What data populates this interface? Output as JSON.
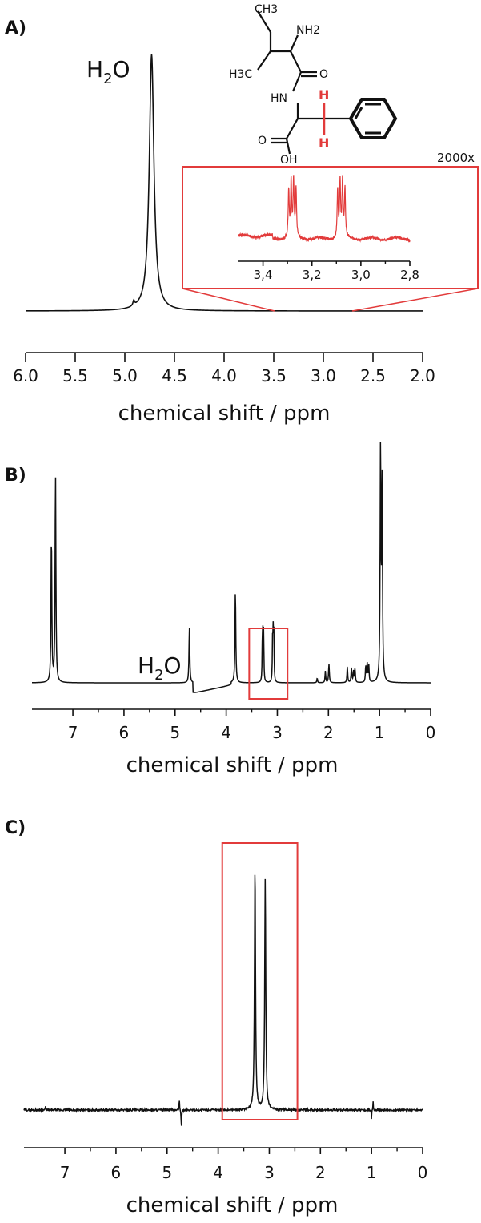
{
  "figure": {
    "panels": [
      {
        "id": "A",
        "label": "A)",
        "annotation": "H2O",
        "annotation_sub": "2",
        "xlabel": "chemical shift / ppm"
      },
      {
        "id": "B",
        "label": "B)",
        "annotation": "H2O",
        "annotation_sub": "2",
        "xlabel": "chemical shift / ppm"
      },
      {
        "id": "C",
        "label": "C)",
        "xlabel": "chemical shift / ppm"
      }
    ],
    "inset": {
      "magnification": "2000x"
    },
    "molecule": {
      "labels": {
        "ch3_top": "CH3",
        "nh2": "NH2",
        "h3c": "H3C",
        "o_amide": "O",
        "hn": "HN",
        "h_top": "H",
        "h_bottom": "H",
        "o_acid": "O",
        "oh": "OH"
      }
    },
    "colors": {
      "trace": "#111111",
      "highlight": "#e23b3b",
      "inset_trace": "#e23b3b"
    }
  },
  "chart_data": [
    {
      "type": "line",
      "panel": "A",
      "xlabel": "chemical shift / ppm",
      "ylabel": "",
      "xlim": [
        6.0,
        2.0
      ],
      "x_reversed": true,
      "xticks": [
        "6.0",
        "5.5",
        "5.0",
        "4.5",
        "4.0",
        "3.5",
        "3.0",
        "2.5",
        "2.0"
      ],
      "xtick_values": [
        6.0,
        5.5,
        5.0,
        4.5,
        4.0,
        3.5,
        3.0,
        2.5,
        2.0
      ],
      "peaks": [
        {
          "label": "H2O",
          "ppm": 4.73,
          "relative_height": 1.0
        }
      ],
      "inset": {
        "label": "2000x",
        "xlim": [
          3.5,
          2.8
        ],
        "xticks": [
          "3,4",
          "3,2",
          "3,0",
          "2,8"
        ],
        "xtick_values": [
          3.4,
          3.2,
          3.0,
          2.8
        ],
        "multiplets": [
          {
            "center_ppm": 3.28,
            "lines": 4
          },
          {
            "center_ppm": 3.08,
            "lines": 4
          }
        ],
        "zoom_region_ppm": [
          3.55,
          2.75
        ]
      }
    },
    {
      "type": "line",
      "panel": "B",
      "xlabel": "chemical shift / ppm",
      "ylabel": "",
      "xlim": [
        7.8,
        0
      ],
      "x_reversed": true,
      "xticks": [
        "7",
        "6",
        "5",
        "4",
        "3",
        "2",
        "1",
        "0"
      ],
      "xtick_values": [
        7,
        6,
        5,
        4,
        3,
        2,
        1,
        0
      ],
      "peaks": [
        {
          "ppm": 7.42,
          "relative_height": 0.64
        },
        {
          "ppm": 7.34,
          "relative_height": 0.9
        },
        {
          "label": "H2O",
          "ppm": 4.72,
          "relative_height": 0.24
        },
        {
          "ppm": 3.82,
          "relative_height": 0.4
        },
        {
          "ppm": 3.28,
          "relative_height": 0.24
        },
        {
          "ppm": 3.08,
          "relative_height": 0.24
        },
        {
          "ppm": 1.99,
          "relative_height": 0.08
        },
        {
          "ppm": 1.55,
          "relative_height": 0.06
        },
        {
          "ppm": 1.24,
          "relative_height": 0.08
        },
        {
          "ppm": 0.98,
          "relative_height": 1.0
        },
        {
          "ppm": 0.95,
          "relative_height": 0.85
        }
      ],
      "highlight_box_ppm": [
        3.55,
        2.8
      ]
    },
    {
      "type": "line",
      "panel": "C",
      "xlabel": "chemical shift / ppm",
      "ylabel": "",
      "xlim": [
        7.8,
        0
      ],
      "x_reversed": true,
      "xticks": [
        "7",
        "6",
        "5",
        "4",
        "3",
        "2",
        "1",
        "0"
      ],
      "xtick_values": [
        7,
        6,
        5,
        4,
        3,
        2,
        1,
        0
      ],
      "peaks": [
        {
          "ppm": 3.28,
          "relative_height": 1.0
        },
        {
          "ppm": 3.08,
          "relative_height": 0.95
        }
      ],
      "highlight_box_ppm": [
        3.92,
        2.45
      ]
    }
  ]
}
